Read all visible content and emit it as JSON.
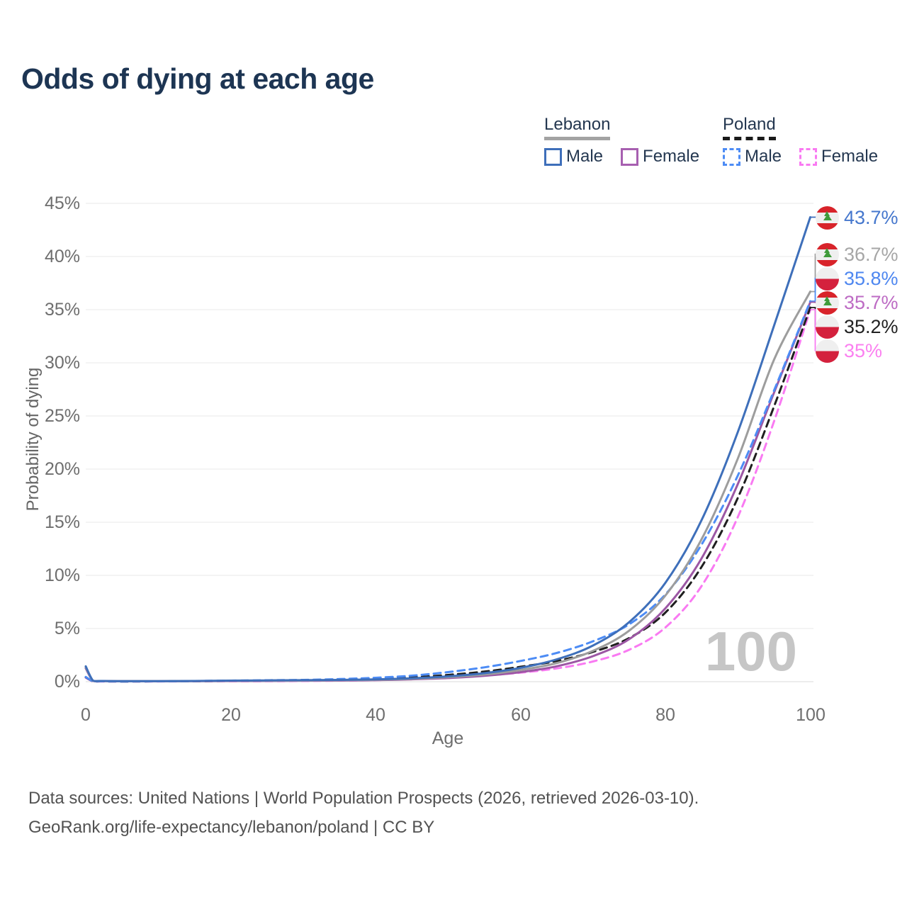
{
  "header": {
    "title": "Odds of dying at each age"
  },
  "legend": {
    "groups": [
      {
        "title": "Lebanon",
        "line_style": "solid",
        "line_color": "#a3a3a3",
        "items": [
          {
            "label": "Male",
            "color": "#3e6fba",
            "line_style": "solid"
          },
          {
            "label": "Female",
            "color": "#a75fb0",
            "line_style": "solid"
          }
        ]
      },
      {
        "title": "Poland",
        "line_style": "dashed",
        "line_color": "#1a1a1a",
        "items": [
          {
            "label": "Male",
            "color": "#4d8cf5",
            "line_style": "dashed"
          },
          {
            "label": "Female",
            "color": "#f97af2",
            "line_style": "dashed"
          }
        ]
      }
    ]
  },
  "chart_data": {
    "type": "line",
    "title": "Odds of dying at each age",
    "xlabel": "Age",
    "ylabel": "Probability of dying",
    "xlim": [
      0,
      100
    ],
    "ylim": [
      0,
      45
    ],
    "grid": true,
    "legend_position": "top-right",
    "watermark": "100",
    "ages": [
      0,
      1,
      2,
      5,
      10,
      15,
      20,
      25,
      30,
      35,
      40,
      45,
      50,
      55,
      60,
      65,
      70,
      75,
      80,
      85,
      90,
      95,
      100
    ],
    "series": [
      {
        "id": "poland-female",
        "name": "Poland Female",
        "country": "Poland",
        "sex": "female",
        "style": "dashed",
        "color": "#f97af2",
        "label_color": "#fb80f0",
        "end_label": "35%",
        "flag": "poland",
        "values": [
          0.38,
          0.03,
          0.02,
          0.02,
          0.02,
          0.03,
          0.04,
          0.05,
          0.07,
          0.1,
          0.15,
          0.24,
          0.38,
          0.58,
          0.85,
          1.25,
          1.9,
          3.0,
          5.1,
          9.0,
          15.5,
          24.5,
          35.0
        ]
      },
      {
        "id": "poland-both",
        "name": "Poland (both sexes)",
        "country": "Poland",
        "sex": "both",
        "style": "dashed",
        "color": "#1f1f1f",
        "label_color": "#222222",
        "end_label": "35.2%",
        "flag": "poland",
        "values": [
          0.42,
          0.04,
          0.03,
          0.02,
          0.03,
          0.05,
          0.07,
          0.09,
          0.12,
          0.17,
          0.26,
          0.4,
          0.63,
          0.95,
          1.4,
          1.95,
          2.8,
          4.1,
          6.5,
          10.8,
          17.3,
          25.9,
          35.2
        ]
      },
      {
        "id": "lebanon-female",
        "name": "Lebanon Female",
        "country": "Lebanon",
        "sex": "female",
        "style": "solid",
        "color": "#9c57a4",
        "label_color": "#bd6bc4",
        "end_label": "35.7%",
        "flag": "lebanon",
        "values": [
          1.25,
          0.08,
          0.06,
          0.04,
          0.04,
          0.05,
          0.06,
          0.07,
          0.09,
          0.11,
          0.15,
          0.22,
          0.34,
          0.55,
          0.9,
          1.45,
          2.4,
          4.0,
          6.9,
          11.6,
          18.6,
          27.2,
          35.7
        ]
      },
      {
        "id": "poland-male",
        "name": "Poland Male",
        "country": "Poland",
        "sex": "male",
        "style": "dashed",
        "color": "#4d8cf5",
        "label_color": "#4e87f0",
        "end_label": "35.8%",
        "flag": "poland",
        "values": [
          0.45,
          0.04,
          0.03,
          0.02,
          0.03,
          0.06,
          0.1,
          0.13,
          0.17,
          0.25,
          0.37,
          0.57,
          0.9,
          1.35,
          1.95,
          2.7,
          3.8,
          5.4,
          8.2,
          12.9,
          19.4,
          27.4,
          35.8
        ]
      },
      {
        "id": "lebanon-both",
        "name": "Lebanon (both sexes)",
        "country": "Lebanon",
        "sex": "both",
        "style": "solid",
        "color": "#9d9d9d",
        "label_color": "#a6a6a6",
        "end_label": "36.7%",
        "flag": "lebanon",
        "values": [
          1.35,
          0.09,
          0.06,
          0.05,
          0.05,
          0.06,
          0.08,
          0.09,
          0.11,
          0.14,
          0.18,
          0.27,
          0.42,
          0.67,
          1.1,
          1.75,
          2.9,
          4.8,
          8.1,
          13.4,
          21.0,
          30.3,
          36.7
        ]
      },
      {
        "id": "lebanon-male",
        "name": "Lebanon Male",
        "country": "Lebanon",
        "sex": "male",
        "style": "solid",
        "color": "#3e6fba",
        "label_color": "#4577cd",
        "end_label": "43.7%",
        "flag": "lebanon",
        "values": [
          1.45,
          0.1,
          0.07,
          0.05,
          0.05,
          0.07,
          0.1,
          0.12,
          0.14,
          0.17,
          0.22,
          0.32,
          0.5,
          0.8,
          1.3,
          2.1,
          3.4,
          5.6,
          9.3,
          15.2,
          23.5,
          33.5,
          43.7
        ]
      }
    ],
    "yticks": [
      {
        "value": 0,
        "label": "0%"
      },
      {
        "value": 5,
        "label": "5%"
      },
      {
        "value": 10,
        "label": "10%"
      },
      {
        "value": 15,
        "label": "15%"
      },
      {
        "value": 20,
        "label": "20%"
      },
      {
        "value": 25,
        "label": "25%"
      },
      {
        "value": 30,
        "label": "30%"
      },
      {
        "value": 35,
        "label": "35%"
      },
      {
        "value": 40,
        "label": "40%"
      },
      {
        "value": 45,
        "label": "45%"
      }
    ],
    "xticks": [
      {
        "value": 0,
        "label": "0"
      },
      {
        "value": 20,
        "label": "20"
      },
      {
        "value": 40,
        "label": "40"
      },
      {
        "value": 60,
        "label": "60"
      },
      {
        "value": 80,
        "label": "80"
      },
      {
        "value": 100,
        "label": "100"
      }
    ],
    "grid_color": "#ededed",
    "flag_colors": {
      "lebanon_red": "#d8232a",
      "poland_red": "#d4213d",
      "white": "#efefef",
      "cedar_green": "#3f9b3a"
    }
  },
  "footer": {
    "line1": "Data sources: United Nations | World Population Prospects (2026, retrieved 2026-03-10).",
    "line2": "GeoRank.org/life-expectancy/lebanon/poland | CC BY"
  }
}
